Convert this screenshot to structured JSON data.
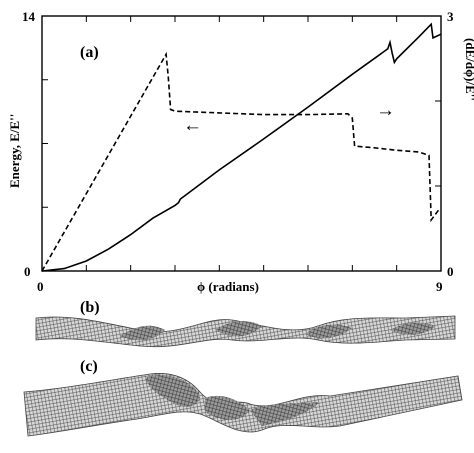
{
  "chart_data": {
    "type": "line",
    "panel_label": "(a)",
    "xlabel": "ϕ (radians)",
    "xlim": [
      0,
      9
    ],
    "x_tick_labels": [
      "0",
      "9"
    ],
    "ylabel_left": "Energy, E/E''",
    "ylim_left": [
      0,
      14
    ],
    "y_left_tick_labels": [
      "0",
      "14"
    ],
    "ylabel_right": "(dE/dϕ)/E''",
    "ylim_right": [
      0,
      3
    ],
    "y_right_tick_labels": [
      "0",
      "3"
    ],
    "grid": false,
    "arrow_left_symbol": "←",
    "arrow_right_symbol": "→",
    "series": [
      {
        "axis": "left",
        "style": "solid",
        "color": "#000000",
        "x": [
          0,
          0.5,
          1.0,
          1.5,
          2.0,
          2.5,
          3.0,
          3.08,
          3.12,
          4.0,
          5.0,
          6.0,
          7.0,
          7.8,
          7.85,
          7.9,
          7.95,
          8.0,
          8.5,
          8.78,
          8.82,
          9.0
        ],
        "y": [
          0,
          0.13,
          0.55,
          1.2,
          2.0,
          2.9,
          3.6,
          3.75,
          3.95,
          5.55,
          7.25,
          9.0,
          10.8,
          12.2,
          12.55,
          11.95,
          11.45,
          11.65,
          12.85,
          13.55,
          12.8,
          13.0
        ]
      },
      {
        "axis": "right",
        "style": "dashed",
        "color": "#000000",
        "x": [
          0,
          2.8,
          2.85,
          2.9,
          3.0,
          4.0,
          5.0,
          6.0,
          6.9,
          7.0,
          7.05,
          7.5,
          8.0,
          8.5,
          8.73,
          8.78,
          8.95,
          9.0
        ],
        "y": [
          0,
          2.55,
          2.28,
          1.9,
          1.88,
          1.86,
          1.84,
          1.84,
          1.85,
          1.8,
          1.47,
          1.45,
          1.42,
          1.4,
          1.36,
          0.6,
          0.72,
          0.72
        ]
      }
    ]
  },
  "panels": [
    {
      "label": "(b)"
    },
    {
      "label": "(c)"
    }
  ]
}
